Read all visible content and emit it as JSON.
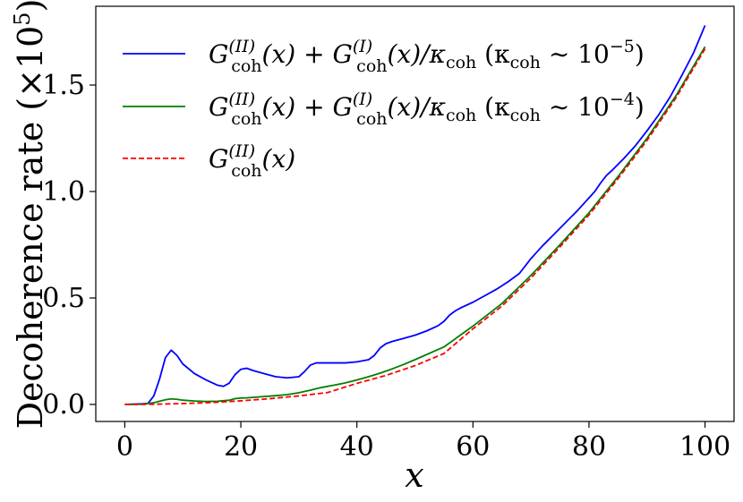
{
  "chart_data": {
    "type": "line",
    "xlabel": "x",
    "ylabel": "Decoherence rate (×10",
    "ylabel_exp": "5",
    "ylabel_close": ")",
    "xlim": [
      -5,
      105
    ],
    "ylim": [
      -0.08,
      1.87
    ],
    "xticks": [
      0,
      20,
      40,
      60,
      80,
      100
    ],
    "xtick_labels": [
      "0",
      "20",
      "40",
      "60",
      "80",
      "100"
    ],
    "yticks": [
      0.0,
      0.5,
      1.0,
      1.5
    ],
    "ytick_labels": [
      "0.0",
      "0.5",
      "1.0",
      "1.5"
    ],
    "grid": false,
    "legend_position": "top-left",
    "series": [
      {
        "name": "G_coh^(II)(x) + G_coh^(I)(x)/κ_coh (κ_coh ~ 10^-5)",
        "color": "#0000ff",
        "style": "solid",
        "x": [
          0,
          2,
          3,
          4,
          5,
          6,
          7,
          8,
          9,
          10,
          12,
          14,
          16,
          17,
          18,
          19,
          20,
          21,
          22,
          24,
          26,
          28,
          30,
          31,
          32,
          33,
          34,
          36,
          38,
          40,
          42,
          43,
          44,
          45,
          46,
          48,
          50,
          52,
          54,
          55,
          56,
          57,
          58,
          60,
          62,
          64,
          66,
          68,
          69,
          70,
          71,
          72,
          74,
          76,
          78,
          80,
          81,
          82,
          83,
          84,
          86,
          88,
          90,
          92,
          94,
          96,
          98,
          100
        ],
        "y": [
          0.0,
          0.002,
          0.003,
          0.005,
          0.04,
          0.12,
          0.22,
          0.255,
          0.23,
          0.19,
          0.145,
          0.115,
          0.09,
          0.085,
          0.1,
          0.14,
          0.165,
          0.17,
          0.16,
          0.145,
          0.13,
          0.125,
          0.13,
          0.155,
          0.185,
          0.195,
          0.195,
          0.195,
          0.195,
          0.2,
          0.21,
          0.23,
          0.265,
          0.285,
          0.295,
          0.31,
          0.325,
          0.345,
          0.37,
          0.39,
          0.42,
          0.44,
          0.455,
          0.48,
          0.51,
          0.54,
          0.575,
          0.615,
          0.65,
          0.685,
          0.715,
          0.745,
          0.8,
          0.855,
          0.91,
          0.97,
          1.0,
          1.04,
          1.075,
          1.1,
          1.155,
          1.215,
          1.285,
          1.36,
          1.445,
          1.545,
          1.65,
          1.78
        ]
      },
      {
        "name": "G_coh^(II)(x) + G_coh^(I)(x)/κ_coh (κ_coh ~ 10^-4)",
        "color": "#008000",
        "style": "solid",
        "x": [
          0,
          3,
          5,
          6,
          7,
          8,
          9,
          10,
          12,
          14,
          16,
          18,
          19,
          20,
          21,
          22,
          24,
          26,
          28,
          30,
          32,
          33,
          34,
          36,
          38,
          40,
          42,
          44,
          46,
          48,
          50,
          55,
          60,
          65,
          70,
          75,
          80,
          85,
          90,
          95,
          100
        ],
        "y": [
          0.0,
          0.001,
          0.008,
          0.015,
          0.022,
          0.026,
          0.024,
          0.02,
          0.016,
          0.014,
          0.015,
          0.02,
          0.027,
          0.03,
          0.031,
          0.033,
          0.037,
          0.041,
          0.046,
          0.055,
          0.067,
          0.074,
          0.08,
          0.09,
          0.101,
          0.115,
          0.13,
          0.147,
          0.166,
          0.187,
          0.21,
          0.27,
          0.368,
          0.474,
          0.606,
          0.75,
          0.9,
          1.07,
          1.25,
          1.45,
          1.68
        ]
      },
      {
        "name": "G_coh^(II)(x)",
        "color": "#ff0000",
        "style": "dashed",
        "x": [
          0,
          5,
          10,
          15,
          20,
          25,
          30,
          35,
          40,
          45,
          50,
          55,
          60,
          65,
          70,
          75,
          80,
          85,
          90,
          95,
          100
        ],
        "y": [
          0.0,
          0.0009,
          0.004,
          0.009,
          0.017,
          0.027,
          0.04,
          0.056,
          0.099,
          0.136,
          0.182,
          0.239,
          0.355,
          0.462,
          0.594,
          0.74,
          0.89,
          1.06,
          1.24,
          1.44,
          1.67
        ]
      }
    ]
  },
  "legend": {
    "entries": [
      {
        "base": "G",
        "sup1": "(II)",
        "sub1": "coh",
        "mid": "(x) + ",
        "base2": "G",
        "sup2": "(I)",
        "sub2": "coh",
        "tail": "(x)/κ",
        "sub3": "coh",
        "paren": " (κ",
        "sub4": "coh",
        "approx": " ∼ 10",
        "exp": "−5",
        "close": ")"
      },
      {
        "base": "G",
        "sup1": "(II)",
        "sub1": "coh",
        "mid": "(x) + ",
        "base2": "G",
        "sup2": "(I)",
        "sub2": "coh",
        "tail": "(x)/κ",
        "sub3": "coh",
        "paren": " (κ",
        "sub4": "coh",
        "approx": " ∼ 10",
        "exp": "−4",
        "close": ")"
      },
      {
        "base": "G",
        "sup1": "(II)",
        "sub1": "coh",
        "tail": "(x)"
      }
    ]
  }
}
